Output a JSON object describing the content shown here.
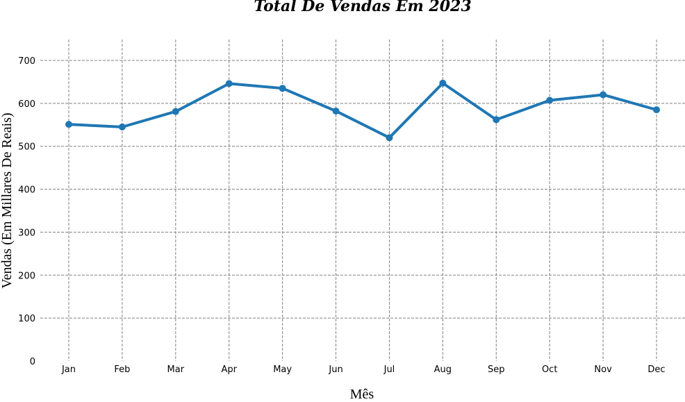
{
  "chart_data": {
    "type": "line",
    "title": "Total De Vendas Em 2023",
    "xlabel": "Mês",
    "ylabel": "Vendas (Em Millares De Reais)",
    "categories": [
      "Jan",
      "Feb",
      "Mar",
      "Apr",
      "May",
      "Jun",
      "Jul",
      "Aug",
      "Sep",
      "Oct",
      "Nov",
      "Dec"
    ],
    "series": [
      {
        "values": [
          551,
          545,
          581,
          646,
          635,
          582,
          520,
          647,
          562,
          607,
          620,
          585
        ]
      }
    ],
    "ylim": [
      0,
      750
    ],
    "yticks": [
      0,
      100,
      200,
      300,
      400,
      500,
      600,
      700
    ],
    "grid": true,
    "line_color": "#1f77b4",
    "grid_color": "#808080"
  }
}
